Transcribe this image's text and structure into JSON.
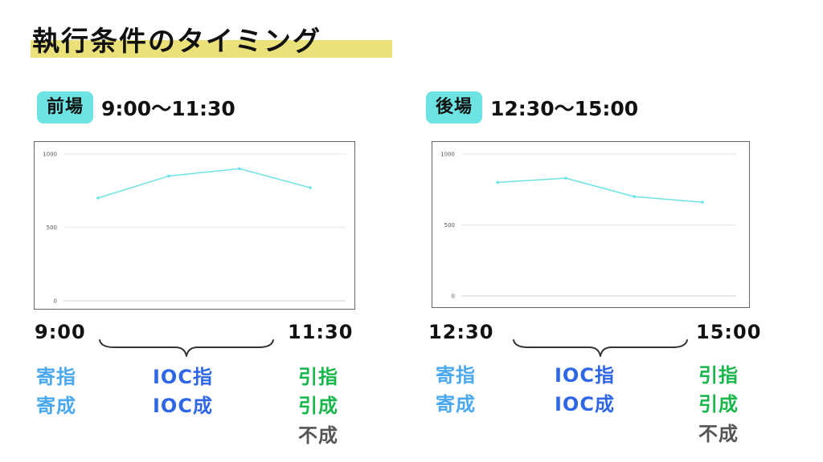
{
  "title": "執行条件のタイミング",
  "sessions": [
    {
      "badge": "前場",
      "time_range": "9:00〜11:30",
      "start_time": "9:00",
      "end_time": "11:30",
      "start_labels": [
        "寄指",
        "寄成"
      ],
      "middle_labels": [
        "IOC指",
        "IOC成"
      ],
      "end_labels": [
        "引指",
        "引成",
        "不成"
      ]
    },
    {
      "badge": "後場",
      "time_range": "12:30〜15:00",
      "start_time": "12:30",
      "end_time": "15:00",
      "start_labels": [
        "寄指",
        "寄成"
      ],
      "middle_labels": [
        "IOC指",
        "IOC成"
      ],
      "end_labels": [
        "引指",
        "引成",
        "不成"
      ]
    }
  ],
  "colors": {
    "title_highlight": "#ebe17a",
    "badge": "#6de3e3",
    "line": "#6de3e3",
    "start_labels": "#4aa8f0",
    "middle_labels": "#2f66e6",
    "end_labels": "#19b64c",
    "end_muted": "#555555"
  },
  "icons": [
    "brace-icon"
  ],
  "chart_data": [
    {
      "type": "line",
      "series": [
        {
          "values": [
            700,
            850,
            900,
            770
          ]
        }
      ],
      "ylim": [
        0,
        1000
      ],
      "yticks": [
        "1000",
        "500",
        "0"
      ],
      "grid": true,
      "legend": "none"
    },
    {
      "type": "line",
      "series": [
        {
          "values": [
            800,
            830,
            700,
            660
          ]
        }
      ],
      "ylim": [
        0,
        1000
      ],
      "yticks": [
        "1000",
        "500",
        "0"
      ],
      "grid": true,
      "legend": "none"
    }
  ]
}
